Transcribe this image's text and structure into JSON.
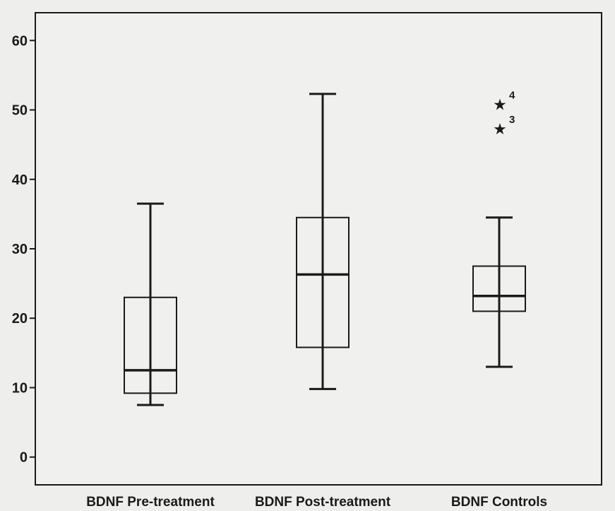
{
  "chart_data": {
    "type": "boxplot",
    "title": "",
    "xlabel": "",
    "ylabel": "",
    "ylim": [
      -4,
      64
    ],
    "yticks": [
      0,
      10,
      20,
      30,
      40,
      50,
      60
    ],
    "ytick_labels": [
      "0",
      "10",
      "20",
      "30",
      "40",
      "50",
      "60"
    ],
    "grid": false,
    "categories": [
      "BDNF Pre-treatment",
      "BDNF Post-treatment",
      "BDNF Controls"
    ],
    "boxes": [
      {
        "category": "BDNF Pre-treatment",
        "whisker_low": 7.5,
        "q1": 9.2,
        "median": 12.5,
        "q3": 23.0,
        "whisker_high": 36.5,
        "outliers": []
      },
      {
        "category": "BDNF Post-treatment",
        "whisker_low": 9.8,
        "q1": 15.8,
        "median": 26.3,
        "q3": 34.5,
        "whisker_high": 52.3,
        "outliers": []
      },
      {
        "category": "BDNF Controls",
        "whisker_low": 13.0,
        "q1": 21.0,
        "median": 23.2,
        "q3": 27.5,
        "whisker_high": 34.5,
        "outliers": [
          {
            "value": 50.8,
            "label": "4"
          },
          {
            "value": 47.3,
            "label": "3"
          }
        ]
      }
    ],
    "colors": {
      "stroke": "#1a1a1a",
      "box_fill": "#f2f2f0",
      "plot_bg": "#f0f0ee"
    }
  }
}
